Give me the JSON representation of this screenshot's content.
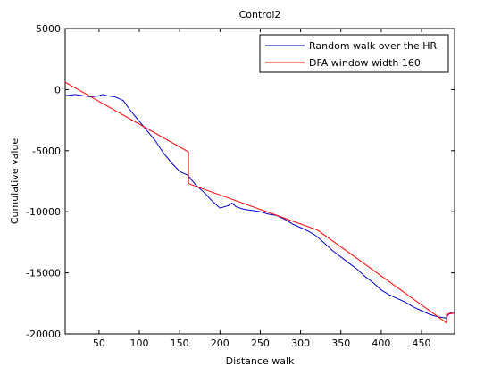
{
  "chart_data": {
    "type": "line",
    "title": "Control2",
    "xlabel": "Distance walk",
    "ylabel": "Cumulative value",
    "xlim": [
      8,
      491
    ],
    "ylim": [
      -20000,
      5000
    ],
    "xticks": [
      50,
      100,
      150,
      200,
      250,
      300,
      350,
      400,
      450
    ],
    "yticks": [
      5000,
      0,
      -5000,
      -10000,
      -15000,
      -20000
    ],
    "grid": false,
    "legend_position": "top-right",
    "series": [
      {
        "name": "Random walk over the HR",
        "color": "#0000cc",
        "x": [
          8,
          20,
          30,
          40,
          50,
          55,
          60,
          70,
          80,
          90,
          100,
          110,
          120,
          130,
          140,
          150,
          160,
          170,
          180,
          190,
          200,
          210,
          215,
          220,
          230,
          240,
          250,
          260,
          270,
          280,
          290,
          300,
          310,
          320,
          330,
          340,
          350,
          360,
          370,
          380,
          390,
          400,
          410,
          420,
          430,
          440,
          450,
          460,
          470,
          480,
          485,
          491
        ],
        "y": [
          -500,
          -400,
          -500,
          -600,
          -500,
          -400,
          -500,
          -600,
          -900,
          -1800,
          -2600,
          -3400,
          -4200,
          -5200,
          -6000,
          -6700,
          -7000,
          -7800,
          -8400,
          -9100,
          -9700,
          -9500,
          -9300,
          -9600,
          -9800,
          -9900,
          -10000,
          -10200,
          -10300,
          -10600,
          -11000,
          -11300,
          -11600,
          -12000,
          -12600,
          -13200,
          -13700,
          -14200,
          -14700,
          -15300,
          -15800,
          -16400,
          -16800,
          -17100,
          -17400,
          -17800,
          -18100,
          -18400,
          -18600,
          -18700,
          -18300,
          -18300
        ]
      },
      {
        "name": "DFA window width 160",
        "color": "#ff0000",
        "x": [
          8,
          161,
          161,
          321,
          321,
          481,
          481,
          491
        ],
        "y": [
          600,
          -5100,
          -7700,
          -11500,
          -11500,
          -19100,
          -18400,
          -18300
        ]
      }
    ]
  }
}
